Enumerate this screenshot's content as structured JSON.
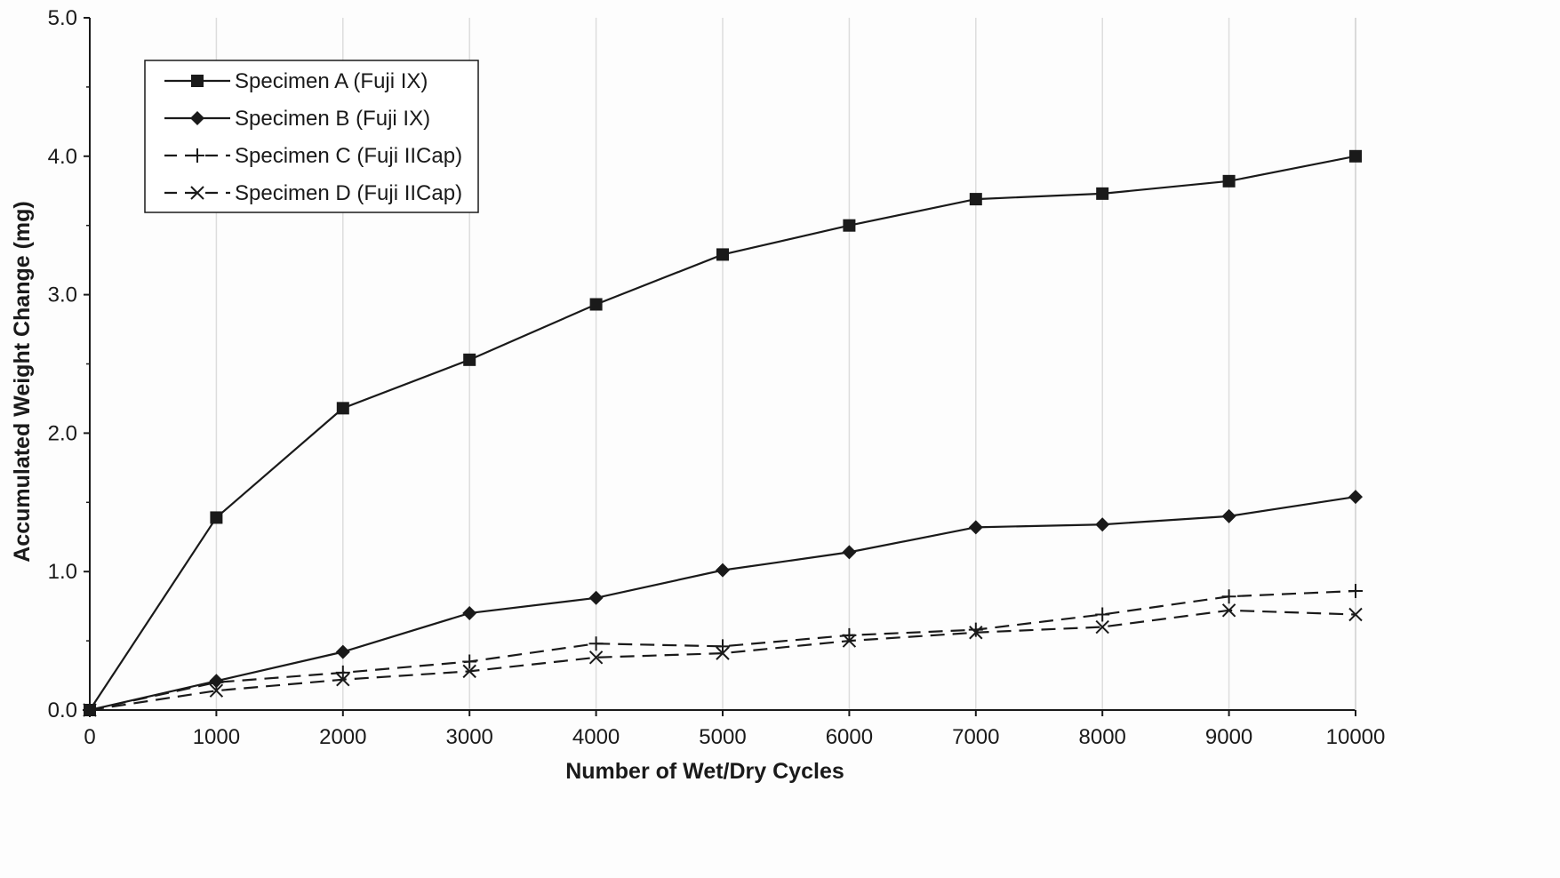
{
  "chart_data": {
    "type": "line",
    "title": "",
    "xlabel": "Number of Wet/Dry Cycles",
    "ylabel": "Accumulated Weight Change (mg)",
    "x": [
      0,
      1000,
      2000,
      3000,
      4000,
      5000,
      6000,
      7000,
      8000,
      9000,
      10000
    ],
    "x_ticks": [
      "0",
      "1000",
      "2000",
      "3000",
      "4000",
      "5000",
      "6000",
      "7000",
      "8000",
      "9000",
      "10000"
    ],
    "y_ticks": [
      "0.0",
      "1.0",
      "2.0",
      "3.0",
      "4.0",
      "5.0"
    ],
    "xlim": [
      0,
      10000
    ],
    "ylim": [
      0,
      5.0
    ],
    "grid": "vertical",
    "legend_position": "top-left",
    "series": [
      {
        "name": "Specimen A (Fuji IX)",
        "marker": "square",
        "line": "solid",
        "color": "#1a1a1a",
        "values": [
          0.0,
          1.39,
          2.18,
          2.53,
          2.93,
          3.29,
          3.5,
          3.69,
          3.73,
          3.82,
          4.0
        ]
      },
      {
        "name": "Specimen B (Fuji IX)",
        "marker": "diamond",
        "line": "solid",
        "color": "#1a1a1a",
        "values": [
          0.0,
          0.21,
          0.42,
          0.7,
          0.81,
          1.01,
          1.14,
          1.32,
          1.34,
          1.4,
          1.54
        ]
      },
      {
        "name": "Specimen C (Fuji IICap)",
        "marker": "plus",
        "line": "dashed",
        "color": "#1a1a1a",
        "values": [
          0.0,
          0.2,
          0.27,
          0.35,
          0.48,
          0.46,
          0.54,
          0.58,
          0.69,
          0.82,
          0.86
        ]
      },
      {
        "name": "Specimen D (Fuji IICap)",
        "marker": "x",
        "line": "dashed",
        "color": "#1a1a1a",
        "values": [
          0.0,
          0.14,
          0.22,
          0.28,
          0.38,
          0.41,
          0.5,
          0.56,
          0.6,
          0.72,
          0.69
        ]
      }
    ]
  }
}
